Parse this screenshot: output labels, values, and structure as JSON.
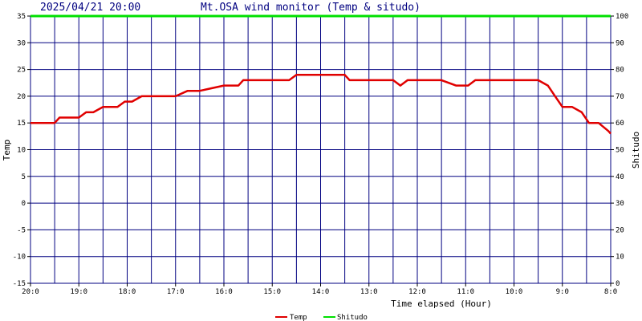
{
  "header": {
    "datetime": "2025/04/21 20:00",
    "title": "Mt.OSA wind monitor (Temp & situdo)"
  },
  "colors": {
    "grid": "#000080",
    "temp": "#e00000",
    "shitudo": "#00e000",
    "header_text": "#000080"
  },
  "chart_data": {
    "type": "line",
    "title": "Mt.OSA wind monitor (Temp & situdo)",
    "xlabel": "Time elapsed (Hour)",
    "ylabel_left": "Temp",
    "ylabel_right": "Shitudo",
    "ylim_left": [
      -15,
      35
    ],
    "ylim_right": [
      0,
      100
    ],
    "xlim": [
      0,
      12
    ],
    "x_direction": "hours elapsed, 0 (20:00) at left to 12 (8:00) at right",
    "x_ticks": [
      {
        "x": 0,
        "label": "20:0"
      },
      {
        "x": 1,
        "label": "19:0"
      },
      {
        "x": 2,
        "label": "18:0"
      },
      {
        "x": 3,
        "label": "17:0"
      },
      {
        "x": 4,
        "label": "16:0"
      },
      {
        "x": 5,
        "label": "15:0"
      },
      {
        "x": 6,
        "label": "14:0"
      },
      {
        "x": 7,
        "label": "13:0"
      },
      {
        "x": 8,
        "label": "12:0"
      },
      {
        "x": 9,
        "label": "11:0"
      },
      {
        "x": 10,
        "label": "10:0"
      },
      {
        "x": 11,
        "label": "9:0"
      },
      {
        "x": 12,
        "label": "8:0"
      }
    ],
    "y_ticks_left": [
      "35",
      "30",
      "25",
      "20",
      "15",
      "10",
      "5",
      "0",
      "-5",
      "-10",
      "-15"
    ],
    "y_ticks_right": [
      "100",
      "90",
      "80",
      "70",
      "60",
      "50",
      "40",
      "30",
      "20",
      "10",
      "0"
    ],
    "grid": true,
    "legend_position": "bottom-center",
    "series": [
      {
        "name": "Temp",
        "axis": "left",
        "color": "#e00000",
        "x": [
          0,
          0.5,
          0.6,
          1.0,
          1.15,
          1.3,
          1.5,
          1.8,
          1.95,
          2.1,
          2.3,
          2.6,
          2.7,
          3.0,
          3.25,
          3.5,
          4.0,
          4.3,
          4.4,
          5.2,
          5.35,
          5.5,
          6.0,
          6.5,
          6.6,
          7.0,
          7.5,
          7.65,
          7.8,
          8.0,
          8.5,
          8.8,
          9.05,
          9.2,
          9.5,
          10.0,
          10.5,
          10.7,
          10.85,
          11.0,
          11.2,
          11.4,
          11.55,
          11.75,
          11.95,
          12.0
        ],
        "values": [
          15,
          15,
          16,
          16,
          17,
          17,
          18,
          18,
          19,
          19,
          20,
          20,
          20,
          20,
          21,
          21,
          22,
          22,
          23,
          23,
          23,
          24,
          24,
          24,
          23,
          23,
          23,
          22,
          23,
          23,
          23,
          22,
          22,
          23,
          23,
          23,
          23,
          22,
          20,
          18,
          18,
          17,
          15,
          15,
          13.5,
          13
        ]
      },
      {
        "name": "Shitudo",
        "axis": "right",
        "color": "#00e000",
        "x": [
          0,
          12
        ],
        "values": [
          100,
          100
        ]
      }
    ]
  }
}
